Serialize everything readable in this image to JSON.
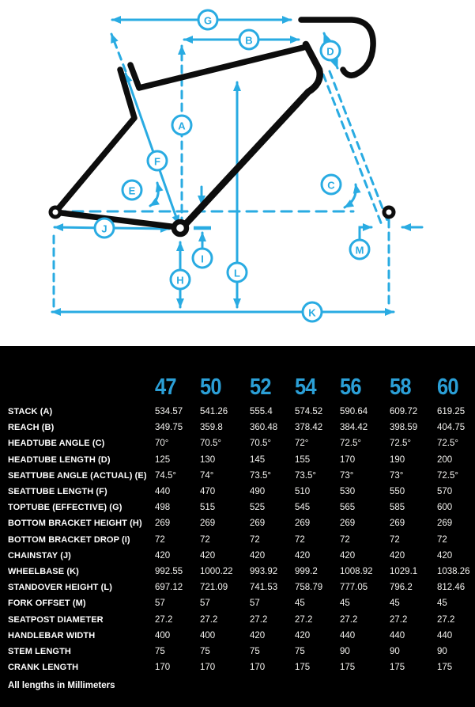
{
  "colors": {
    "accent": "#29abe2",
    "header-accent": "#2b9fd6",
    "frame": "#0d0d0d",
    "table-bg": "#000000"
  },
  "diagram": {
    "markers": [
      "G",
      "B",
      "A",
      "D",
      "F",
      "E",
      "C",
      "J",
      "I",
      "H",
      "L",
      "M",
      "K"
    ]
  },
  "table": {
    "sizes": [
      "47",
      "50",
      "52",
      "54",
      "56",
      "58",
      "60"
    ],
    "rows": [
      {
        "label": "STACK (A)",
        "values": [
          "534.57",
          "541.26",
          "555.4",
          "574.52",
          "590.64",
          "609.72",
          "619.25"
        ]
      },
      {
        "label": "REACH (B)",
        "values": [
          "349.75",
          "359.8",
          "360.48",
          "378.42",
          "384.42",
          "398.59",
          "404.75"
        ]
      },
      {
        "label": "HEADTUBE ANGLE (C)",
        "values": [
          "70°",
          "70.5°",
          "70.5°",
          "72°",
          "72.5°",
          "72.5°",
          "72.5°"
        ]
      },
      {
        "label": "HEADTUBE LENGTH (D)",
        "values": [
          "125",
          "130",
          "145",
          "155",
          "170",
          "190",
          "200"
        ]
      },
      {
        "label": "SEATTUBE ANGLE (ACTUAL) (E)",
        "values": [
          "74.5°",
          "74°",
          "73.5°",
          "73.5°",
          "73°",
          "73°",
          "72.5°"
        ]
      },
      {
        "label": "SEATTUBE LENGTH (F)",
        "values": [
          "440",
          "470",
          "490",
          "510",
          "530",
          "550",
          "570"
        ]
      },
      {
        "label": "TOPTUBE (EFFECTIVE) (G)",
        "values": [
          "498",
          "515",
          "525",
          "545",
          "565",
          "585",
          "600"
        ]
      },
      {
        "label": "BOTTOM BRACKET HEIGHT (H)",
        "values": [
          "269",
          "269",
          "269",
          "269",
          "269",
          "269",
          "269"
        ]
      },
      {
        "label": "BOTTOM BRACKET DROP (I)",
        "values": [
          "72",
          "72",
          "72",
          "72",
          "72",
          "72",
          "72"
        ]
      },
      {
        "label": "CHAINSTAY (J)",
        "values": [
          "420",
          "420",
          "420",
          "420",
          "420",
          "420",
          "420"
        ]
      },
      {
        "label": "WHEELBASE (K)",
        "values": [
          "992.55",
          "1000.22",
          "993.92",
          "999.2",
          "1008.92",
          "1029.1",
          "1038.26"
        ]
      },
      {
        "label": "STANDOVER HEIGHT (L)",
        "values": [
          "697.12",
          "721.09",
          "741.53",
          "758.79",
          "777.05",
          "796.2",
          "812.46"
        ]
      },
      {
        "label": "FORK OFFSET (M)",
        "values": [
          "57",
          "57",
          "57",
          "45",
          "45",
          "45",
          "45"
        ]
      },
      {
        "label": "SEATPOST DIAMETER",
        "values": [
          "27.2",
          "27.2",
          "27.2",
          "27.2",
          "27.2",
          "27.2",
          "27.2"
        ]
      },
      {
        "label": "HANDLEBAR WIDTH",
        "values": [
          "400",
          "400",
          "420",
          "420",
          "440",
          "440",
          "440"
        ]
      },
      {
        "label": "STEM LENGTH",
        "values": [
          "75",
          "75",
          "75",
          "75",
          "90",
          "90",
          "90"
        ]
      },
      {
        "label": "CRANK LENGTH",
        "values": [
          "170",
          "170",
          "170",
          "175",
          "175",
          "175",
          "175"
        ]
      }
    ],
    "footnote": "All lengths in Millimeters"
  }
}
